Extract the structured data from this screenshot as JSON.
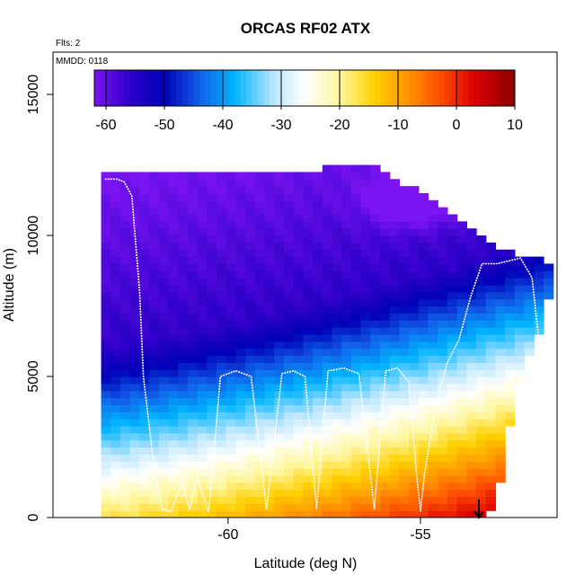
{
  "chart_data": {
    "type": "heatmap",
    "title": "ORCAS RF02 ATX",
    "flights_label": "Flts: 2",
    "date_label": "MMDD: 0118",
    "xlabel": "Latitude (deg N)",
    "ylabel": "Altitude (m)",
    "xlim": [
      -64.55,
      -51.45
    ],
    "ylim": [
      0,
      16500
    ],
    "x_ticks": [
      -60,
      -55
    ],
    "x_tick_labels": [
      "-60",
      "-55"
    ],
    "y_ticks": [
      0,
      5000,
      10000,
      15000
    ],
    "y_tick_labels": [
      "0",
      "5000",
      "10000",
      "15000"
    ],
    "colorbar": {
      "range": [
        -62,
        10
      ],
      "ticks": [
        -60,
        -50,
        -40,
        -30,
        -20,
        -10,
        0,
        10
      ],
      "tick_labels": [
        "-60",
        "-50",
        "-40",
        "-30",
        "-20",
        "-10",
        "0",
        "10"
      ],
      "stops": [
        {
          "value": -62,
          "color": "#7a14f0"
        },
        {
          "value": -56,
          "color": "#2d00c8"
        },
        {
          "value": -50,
          "color": "#0000b8"
        },
        {
          "value": -44,
          "color": "#1060e8"
        },
        {
          "value": -38,
          "color": "#00b4ff"
        },
        {
          "value": -31,
          "color": "#bfe8ff"
        },
        {
          "value": -26,
          "color": "#ffffff"
        },
        {
          "value": -20,
          "color": "#fff7a0"
        },
        {
          "value": -14,
          "color": "#ffd000"
        },
        {
          "value": -8,
          "color": "#ff9000"
        },
        {
          "value": -3,
          "color": "#ff5000"
        },
        {
          "value": 3,
          "color": "#dd0000"
        },
        {
          "value": 10,
          "color": "#8b0000"
        }
      ]
    },
    "field": {
      "lat_min": -63.3,
      "lat_max": -51.6,
      "alt_max": 12400,
      "cell_lat": 0.25,
      "cell_alt": 250,
      "surface_temp_south": -17,
      "surface_temp_north": 9,
      "lapse_per_km": -6.5,
      "cold_pool_temp": -65,
      "cold_pool_lat": -55.2,
      "cold_pool_alt": 11300
    },
    "coverage_top": {
      "lat": [
        -63.3,
        -57.7,
        -57.6,
        -56.1,
        -55.8,
        -55.5,
        -55.2,
        -54.9,
        -54.6,
        -54.3,
        -54.0,
        -53.7,
        -53.4,
        -53.1,
        -52.8,
        -52.5,
        -52.0,
        -51.6
      ],
      "alt": [
        12200,
        12200,
        12400,
        12400,
        12100,
        11900,
        11700,
        11500,
        11300,
        11000,
        10700,
        10300,
        10000,
        9700,
        9500,
        9300,
        9200,
        9100
      ]
    },
    "coverage_bottom": {
      "lat": [
        -63.3,
        -62.3,
        -53.4,
        -53.0,
        -52.8,
        -52.4,
        -52.0,
        -51.6
      ],
      "alt": [
        0,
        0,
        0,
        500,
        2300,
        5000,
        6300,
        8000
      ]
    },
    "flight_track": {
      "lat": [
        -63.2,
        -62.9,
        -62.7,
        -62.5,
        -62.3,
        -62.2,
        -61.9,
        -61.7,
        -61.5,
        -61.2,
        -61.0,
        -60.8,
        -60.5,
        -60.2,
        -59.8,
        -59.4,
        -59.0,
        -58.6,
        -58.3,
        -58.0,
        -57.7,
        -57.4,
        -57.0,
        -56.6,
        -56.2,
        -55.9,
        -55.6,
        -55.3,
        -55.1,
        -55.0,
        -54.9,
        -54.6,
        -54.3,
        -54.0,
        -53.7,
        -53.4,
        -53.0,
        -52.7,
        -52.4,
        -52.1,
        -51.9,
        -51.7
      ],
      "alt": [
        12000,
        12000,
        11900,
        11400,
        8000,
        5000,
        1500,
        300,
        200,
        1200,
        300,
        1400,
        200,
        5000,
        5200,
        5000,
        300,
        5100,
        5200,
        5000,
        300,
        5200,
        5300,
        5100,
        300,
        5200,
        5300,
        4800,
        1500,
        200,
        1500,
        4000,
        5500,
        6300,
        7800,
        9000,
        9000,
        9100,
        9200,
        8500,
        6000,
        1500
      ]
    }
  }
}
